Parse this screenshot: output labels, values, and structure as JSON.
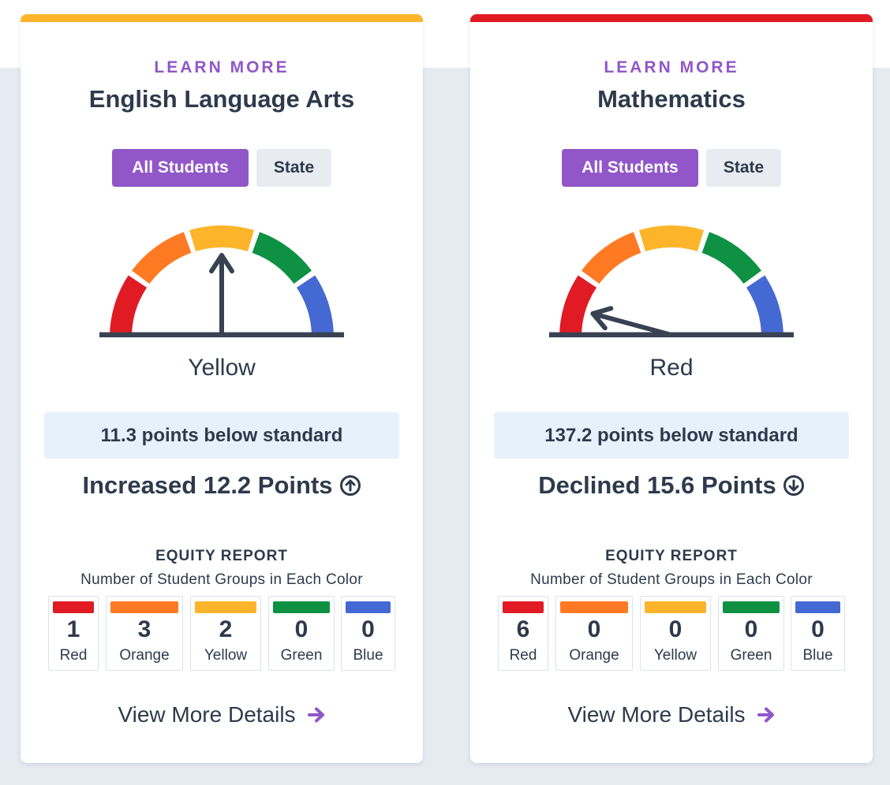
{
  "colors": {
    "purple": "#9157c9",
    "text_dark": "#2e3a4c",
    "red": "#e01b24",
    "orange": "#ff7a22",
    "yellow": "#fcb52b",
    "green": "#0e9142",
    "blue": "#4469d2",
    "status_bg": "#e6f1fc",
    "page_band": "#e6ebf2"
  },
  "cards": [
    {
      "id": "ela",
      "top_bar_color": "#fcb52b",
      "learn_more": "LEARN MORE",
      "title": "English Language Arts",
      "toggle": {
        "active": "All Students",
        "inactive": "State"
      },
      "gauge": {
        "level": "Yellow",
        "level_index": 3,
        "levels_total": 5
      },
      "gauge_label": "Yellow",
      "status": "11.3 points below standard",
      "change": {
        "text": "Increased 12.2 Points",
        "direction": "up",
        "icon": "arrow-circle-up-icon"
      },
      "equity": {
        "title": "EQUITY REPORT",
        "subtitle": "Number of Student Groups in Each Color",
        "tiles": [
          {
            "count": "1",
            "label": "Red",
            "color": "#e01b24"
          },
          {
            "count": "3",
            "label": "Orange",
            "color": "#ff7a22"
          },
          {
            "count": "2",
            "label": "Yellow",
            "color": "#fcb52b"
          },
          {
            "count": "0",
            "label": "Green",
            "color": "#0e9142"
          },
          {
            "count": "0",
            "label": "Blue",
            "color": "#4469d2"
          }
        ]
      },
      "details": "View More Details"
    },
    {
      "id": "math",
      "top_bar_color": "#e01b24",
      "learn_more": "LEARN MORE",
      "title": "Mathematics",
      "toggle": {
        "active": "All Students",
        "inactive": "State"
      },
      "gauge": {
        "level": "Red",
        "level_index": 1,
        "levels_total": 5
      },
      "gauge_label": "Red",
      "status": "137.2 points below standard",
      "change": {
        "text": "Declined 15.6 Points",
        "direction": "down",
        "icon": "arrow-circle-down-icon"
      },
      "equity": {
        "title": "EQUITY REPORT",
        "subtitle": "Number of Student Groups in Each Color",
        "tiles": [
          {
            "count": "6",
            "label": "Red",
            "color": "#e01b24"
          },
          {
            "count": "0",
            "label": "Orange",
            "color": "#ff7a22"
          },
          {
            "count": "0",
            "label": "Yellow",
            "color": "#fcb52b"
          },
          {
            "count": "0",
            "label": "Green",
            "color": "#0e9142"
          },
          {
            "count": "0",
            "label": "Blue",
            "color": "#4469d2"
          }
        ]
      },
      "details": "View More Details"
    }
  ]
}
